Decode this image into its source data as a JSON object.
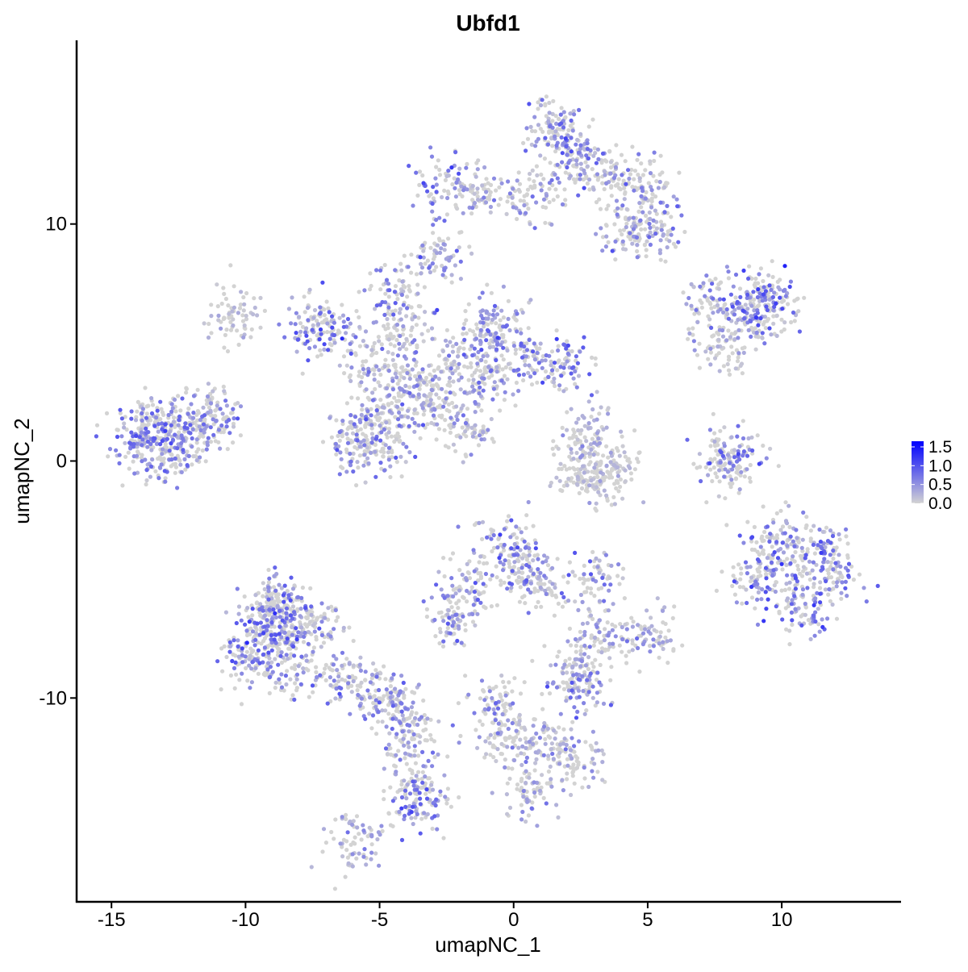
{
  "chart_data": {
    "type": "scatter",
    "title": "Ubfd1",
    "xlabel": "umapNC_1",
    "ylabel": "umapNC_2",
    "xlim": [
      -16.3,
      14.45
    ],
    "ylim": [
      -18.6,
      17.75
    ],
    "xticks": [
      -15,
      -10,
      -5,
      0,
      5,
      10
    ],
    "yticks": [
      -10,
      0,
      10
    ],
    "grid": false,
    "legend": {
      "placement": "right",
      "type": "colorbar",
      "range": [
        0,
        1.65
      ],
      "ticks": [
        "0.0",
        "0.5",
        "1.0",
        "1.5"
      ],
      "low_color": "#d3d3d3",
      "high_color": "#0000ff"
    },
    "points_note_columns": [
      "umapNC_1",
      "umapNC_2",
      "expression"
    ],
    "cluster_points": [
      [
        -14.1,
        1.1,
        0.5
      ],
      [
        -13.2,
        1.7,
        0.5
      ],
      [
        -12.3,
        0.7,
        0.45
      ],
      [
        -11.7,
        2.1,
        0.4
      ],
      [
        -11.1,
        1.6,
        0.4
      ],
      [
        -12.9,
        0.2,
        0.45
      ],
      [
        -13.6,
        0.6,
        0.5
      ],
      [
        -8.6,
        -7.5,
        0.5
      ],
      [
        -9.2,
        -6.4,
        0.5
      ],
      [
        -9.8,
        -8.5,
        0.5
      ],
      [
        -8.0,
        -8.8,
        0.45
      ],
      [
        -7.4,
        -6.8,
        0.4
      ],
      [
        -8.9,
        -5.8,
        0.45
      ],
      [
        -8.4,
        -6.8,
        0.5
      ],
      [
        -9.3,
        -7.6,
        0.5
      ],
      [
        -6.2,
        -9.2,
        0.35
      ],
      [
        -5.0,
        -9.8,
        0.35
      ],
      [
        -4.1,
        -10.5,
        0.45
      ],
      [
        -4.0,
        -11.9,
        0.4
      ],
      [
        -3.7,
        -13.6,
        0.45
      ],
      [
        -3.4,
        -14.6,
        0.5
      ],
      [
        -5.9,
        -16.0,
        0.3
      ],
      [
        -5.9,
        0.7,
        0.45
      ],
      [
        -5.0,
        0.4,
        0.45
      ],
      [
        -5.5,
        1.7,
        0.4
      ],
      [
        -6.8,
        5.5,
        0.55
      ],
      [
        -7.4,
        5.8,
        0.55
      ],
      [
        -5.3,
        4.1,
        0.35
      ],
      [
        -3.5,
        3.1,
        0.3
      ],
      [
        -2.3,
        4.1,
        0.35
      ],
      [
        -1.1,
        5.1,
        0.45
      ],
      [
        -0.5,
        5.8,
        0.4
      ],
      [
        0.4,
        4.1,
        0.45
      ],
      [
        1.9,
        4.1,
        0.5
      ],
      [
        -1.1,
        3.4,
        0.4
      ],
      [
        -2.9,
        2.4,
        0.3
      ],
      [
        -4.4,
        2.4,
        0.35
      ],
      [
        -4.4,
        7.2,
        0.5
      ],
      [
        -4.1,
        5.5,
        0.3
      ],
      [
        -1.7,
        1.4,
        0.3
      ],
      [
        1.6,
        14.3,
        0.5
      ],
      [
        1.9,
        13.3,
        0.45
      ],
      [
        2.5,
        12.6,
        0.35
      ],
      [
        3.7,
        12.0,
        0.35
      ],
      [
        4.9,
        11.6,
        0.4
      ],
      [
        5.2,
        9.9,
        0.4
      ],
      [
        4.3,
        9.6,
        0.35
      ],
      [
        -2.6,
        11.6,
        0.5
      ],
      [
        -1.1,
        11.3,
        0.35
      ],
      [
        0.7,
        11.1,
        0.35
      ],
      [
        -2.8,
        8.7,
        0.4
      ],
      [
        7.3,
        6.8,
        0.45
      ],
      [
        9.1,
        6.8,
        0.55
      ],
      [
        9.7,
        6.8,
        0.6
      ],
      [
        8.8,
        6.0,
        0.4
      ],
      [
        7.8,
        4.8,
        0.2
      ],
      [
        8.2,
        0.4,
        0.5
      ],
      [
        7.9,
        -0.3,
        0.45
      ],
      [
        3.1,
        -0.6,
        0.1
      ],
      [
        3.7,
        -0.3,
        0.1
      ],
      [
        2.5,
        -0.3,
        0.1
      ],
      [
        2.8,
        1.1,
        0.2
      ],
      [
        10.3,
        -4.4,
        0.55
      ],
      [
        9.1,
        -5.1,
        0.55
      ],
      [
        11.5,
        -3.7,
        0.5
      ],
      [
        10.9,
        -6.4,
        0.55
      ],
      [
        11.8,
        -5.0,
        0.5
      ],
      [
        9.6,
        -3.3,
        0.5
      ],
      [
        -0.5,
        -3.7,
        0.5
      ],
      [
        0.4,
        -4.4,
        0.45
      ],
      [
        -1.7,
        -5.4,
        0.4
      ],
      [
        -2.3,
        -6.8,
        0.4
      ],
      [
        1.0,
        -5.1,
        0.4
      ],
      [
        2.5,
        -9.5,
        0.45
      ],
      [
        2.2,
        -8.8,
        0.35
      ],
      [
        -0.5,
        -10.2,
        0.4
      ],
      [
        -0.2,
        -11.6,
        0.35
      ],
      [
        1.3,
        -11.9,
        0.25
      ],
      [
        2.3,
        -12.6,
        0.3
      ],
      [
        2.95,
        -5.0,
        0.5
      ],
      [
        5.0,
        -7.3,
        0.35
      ],
      [
        3.3,
        -7.5,
        0.3
      ],
      [
        0.6,
        -14.0,
        0.3
      ],
      [
        -10.5,
        6.1,
        0.1
      ]
    ]
  }
}
